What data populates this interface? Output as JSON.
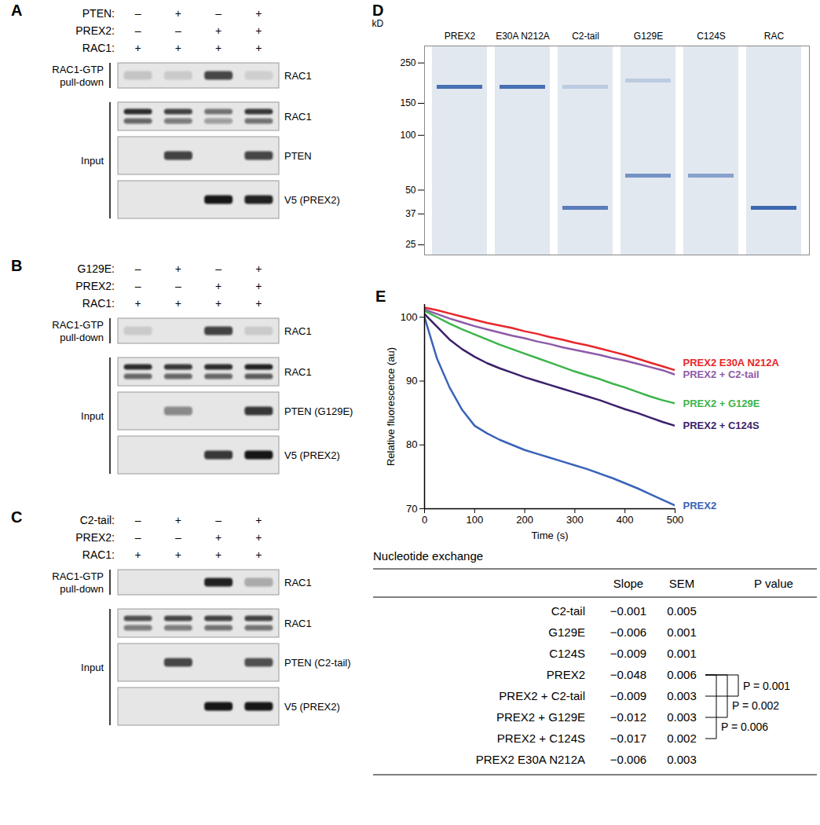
{
  "blots": [
    {
      "panel_label": "A",
      "treatments": [
        {
          "name": "PTEN:",
          "lanes": [
            "–",
            "+",
            "–",
            "+"
          ]
        },
        {
          "name": "PREX2:",
          "lanes": [
            "–",
            "–",
            "+",
            "+"
          ]
        },
        {
          "name": "RAC1:",
          "lanes": [
            "+",
            "+",
            "+",
            "+"
          ]
        }
      ],
      "groups": [
        {
          "label_lines": [
            "RAC1-GTP",
            "pull-down"
          ],
          "rows": [
            {
              "label": "RAC1",
              "bands": [
                [
                  0.15
                ],
                [
                  0.12
                ],
                [
                  0.75
                ],
                [
                  0.1
                ]
              ]
            }
          ]
        },
        {
          "label_lines": [
            "Input"
          ],
          "rows": [
            {
              "label": "RAC1",
              "bands": [
                [
                  0.9,
                  0.6
                ],
                [
                  0.8,
                  0.5
                ],
                [
                  0.55,
                  0.35
                ],
                [
                  0.85,
                  0.55
                ]
              ]
            },
            {
              "label": "PTEN",
              "bands": [
                [
                  0
                ],
                [
                  0.8
                ],
                [
                  0
                ],
                [
                  0.75
                ]
              ]
            },
            {
              "label": "V5 (PREX2)",
              "bands": [
                [
                  0
                ],
                [
                  0
                ],
                [
                  1
                ],
                [
                  0.95
                ]
              ]
            }
          ]
        }
      ]
    },
    {
      "panel_label": "B",
      "treatments": [
        {
          "name": "G129E:",
          "lanes": [
            "–",
            "+",
            "–",
            "+"
          ]
        },
        {
          "name": "PREX2:",
          "lanes": [
            "–",
            "–",
            "+",
            "+"
          ]
        },
        {
          "name": "RAC1:",
          "lanes": [
            "+",
            "+",
            "+",
            "+"
          ]
        }
      ],
      "groups": [
        {
          "label_lines": [
            "RAC1-GTP",
            "pull-down"
          ],
          "rows": [
            {
              "label": "RAC1",
              "bands": [
                [
                  0.12
                ],
                [
                  0
                ],
                [
                  0.8
                ],
                [
                  0.12
                ]
              ]
            }
          ]
        },
        {
          "label_lines": [
            "Input"
          ],
          "rows": [
            {
              "label": "RAC1",
              "bands": [
                [
                  0.9,
                  0.6
                ],
                [
                  0.85,
                  0.6
                ],
                [
                  0.9,
                  0.6
                ],
                [
                  0.95,
                  0.65
                ]
              ]
            },
            {
              "label": "PTEN (G129E)",
              "bands": [
                [
                  0
                ],
                [
                  0.45
                ],
                [
                  0
                ],
                [
                  0.85
                ]
              ]
            },
            {
              "label": "V5 (PREX2)",
              "bands": [
                [
                  0
                ],
                [
                  0
                ],
                [
                  0.85
                ],
                [
                  1
                ]
              ]
            }
          ]
        }
      ]
    },
    {
      "panel_label": "C",
      "treatments": [
        {
          "name": "C2-tail:",
          "lanes": [
            "–",
            "+",
            "–",
            "+"
          ]
        },
        {
          "name": "PREX2:",
          "lanes": [
            "–",
            "–",
            "+",
            "+"
          ]
        },
        {
          "name": "RAC1:",
          "lanes": [
            "+",
            "+",
            "+",
            "+"
          ]
        }
      ],
      "groups": [
        {
          "label_lines": [
            "RAC1-GTP",
            "pull-down"
          ],
          "rows": [
            {
              "label": "RAC1",
              "bands": [
                [
                  0
                ],
                [
                  0
                ],
                [
                  0.95
                ],
                [
                  0.3
                ]
              ]
            }
          ]
        },
        {
          "label_lines": [
            "Input"
          ],
          "rows": [
            {
              "label": "RAC1",
              "bands": [
                [
                  0.7,
                  0.5
                ],
                [
                  0.75,
                  0.5
                ],
                [
                  0.8,
                  0.55
                ],
                [
                  0.8,
                  0.55
                ]
              ]
            },
            {
              "label": "PTEN (C2-tail)",
              "bands": [
                [
                  0
                ],
                [
                  0.75
                ],
                [
                  0
                ],
                [
                  0.7
                ]
              ]
            },
            {
              "label": "V5 (PREX2)",
              "bands": [
                [
                  0
                ],
                [
                  0
                ],
                [
                  1
                ],
                [
                  1
                ]
              ]
            }
          ]
        }
      ]
    }
  ],
  "gel": {
    "panel_label": "D",
    "unit": "kD",
    "log": "y",
    "ylim": [
      22,
      310
    ],
    "yticks": [
      250,
      150,
      100,
      50,
      37,
      25
    ],
    "lanes": [
      "PREX2",
      "E30A N212A",
      "C2-tail",
      "G129E",
      "C124S",
      "RAC"
    ],
    "bands": [
      {
        "lane": "PREX2",
        "kD": 185,
        "intensity": 0.85
      },
      {
        "lane": "E30A N212A",
        "kD": 185,
        "intensity": 0.85
      },
      {
        "lane": "C2-tail",
        "kD": 185,
        "intensity": 0.2
      },
      {
        "lane": "C2-tail",
        "kD": 40,
        "intensity": 0.75
      },
      {
        "lane": "G129E",
        "kD": 200,
        "intensity": 0.2
      },
      {
        "lane": "G129E",
        "kD": 60,
        "intensity": 0.6
      },
      {
        "lane": "C124S",
        "kD": 60,
        "intensity": 0.5
      },
      {
        "lane": "RAC",
        "kD": 40,
        "intensity": 0.9
      }
    ]
  },
  "chart_data": {
    "type": "line",
    "panel_label": "E",
    "x_label": "Time (s)",
    "y_label": "Relative fluorescence (au)",
    "xlim": [
      0,
      500
    ],
    "xticks": [
      0,
      100,
      200,
      300,
      400,
      500
    ],
    "ylim": [
      70,
      102
    ],
    "yticks": [
      70,
      80,
      90,
      100
    ],
    "x": [
      0,
      25,
      50,
      75,
      100,
      125,
      150,
      175,
      200,
      225,
      250,
      275,
      300,
      325,
      350,
      375,
      400,
      425,
      450,
      475,
      500
    ],
    "series": [
      {
        "name": "PREX2 E30A N212A",
        "color": "#e8262a",
        "values": [
          101.5,
          101.1,
          100.6,
          100.1,
          99.6,
          99.1,
          98.7,
          98.3,
          97.8,
          97.4,
          96.9,
          96.5,
          96,
          95.6,
          95.1,
          94.6,
          94.1,
          93.5,
          92.9,
          92.3,
          91.7
        ]
      },
      {
        "name": "PREX2 + C2-tail",
        "color": "#8e5ba8",
        "values": [
          101.2,
          100.5,
          99.8,
          99.2,
          98.6,
          98.1,
          97.6,
          97.1,
          96.7,
          96.2,
          95.8,
          95.3,
          94.9,
          94.5,
          94.1,
          93.6,
          93.2,
          92.7,
          92.2,
          91.7,
          91
        ]
      },
      {
        "name": "PREX2 + G129E",
        "color": "#3cb44b",
        "values": [
          101,
          100,
          99,
          98.1,
          97.3,
          96.5,
          95.7,
          95,
          94.3,
          93.6,
          92.9,
          92.2,
          91.5,
          90.9,
          90.3,
          89.6,
          89,
          88.3,
          87.6,
          87,
          86.5
        ]
      },
      {
        "name": "PREX2 + C124S",
        "color": "#3b1f6b",
        "values": [
          100.5,
          98.5,
          96.5,
          95,
          93.8,
          92.8,
          92,
          91.3,
          90.6,
          90,
          89.4,
          88.8,
          88.2,
          87.6,
          87,
          86.3,
          85.6,
          85,
          84.3,
          83.6,
          83
        ]
      },
      {
        "name": "PREX2",
        "color": "#3a63b8",
        "values": [
          100,
          93.5,
          89,
          85.5,
          83,
          81.8,
          80.8,
          80,
          79.2,
          78.6,
          78,
          77.4,
          76.8,
          76.2,
          75.5,
          74.8,
          74,
          73.2,
          72.3,
          71.4,
          70.5
        ]
      }
    ]
  },
  "table": {
    "title": "Nucleotide exchange",
    "columns": [
      "Slope",
      "SEM",
      "P value"
    ],
    "rows": [
      {
        "name": "C2-tail",
        "cells": [
          "−0.001",
          "0.005"
        ]
      },
      {
        "name": "G129E",
        "cells": [
          "−0.006",
          "0.001"
        ]
      },
      {
        "name": "C124S",
        "cells": [
          "−0.009",
          "0.001"
        ]
      },
      {
        "name": "PREX2",
        "cells": [
          "−0.048",
          "0.006"
        ]
      },
      {
        "name": "PREX2 + C2-tail",
        "cells": [
          "−0.009",
          "0.003"
        ]
      },
      {
        "name": "PREX2 + G129E",
        "cells": [
          "−0.012",
          "0.003"
        ]
      },
      {
        "name": "PREX2 + C124S",
        "cells": [
          "−0.017",
          "0.002"
        ]
      },
      {
        "name": "PREX2 E30A N212A",
        "cells": [
          "−0.006",
          "0.003"
        ]
      }
    ],
    "comparisons": [
      {
        "from": "PREX2",
        "to": "PREX2 + C2-tail",
        "label": "P = 0.001"
      },
      {
        "from": "PREX2",
        "to": "PREX2 + G129E",
        "label": "P = 0.002"
      },
      {
        "from": "PREX2",
        "to": "PREX2 + C124S",
        "label": "P = 0.006"
      }
    ]
  }
}
